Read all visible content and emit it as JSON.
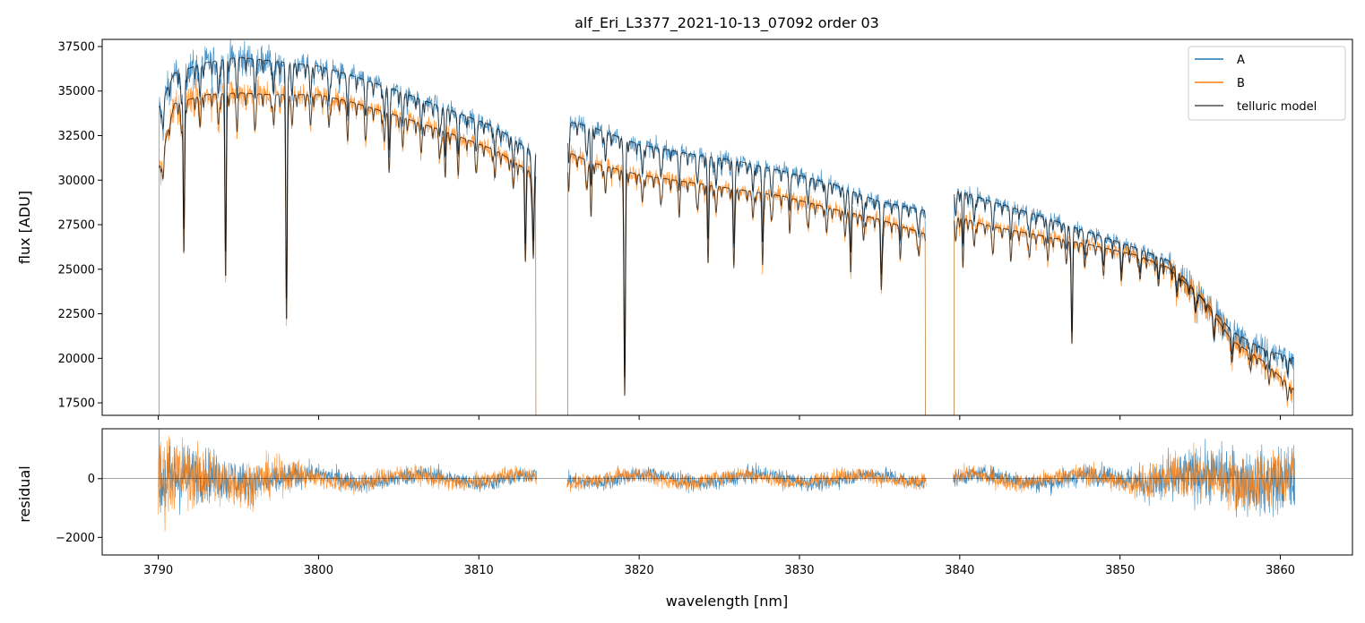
{
  "chart_data": [
    {
      "panel": "main",
      "type": "line",
      "title": "alf_Eri_L3377_2021-10-13_07092  order 03",
      "xlabel": "",
      "ylabel": "flux [ADU]",
      "xlim": [
        3786.5,
        3864.5
      ],
      "ylim": [
        16800,
        37900
      ],
      "yticks": [
        17500,
        20000,
        22500,
        25000,
        27500,
        30000,
        32500,
        35000,
        37500
      ],
      "ytick_labels": [
        "17500",
        "20000",
        "22500",
        "25000",
        "27500",
        "30000",
        "32500",
        "35000",
        "37500"
      ],
      "xticks": [
        3790,
        3800,
        3810,
        3820,
        3830,
        3840,
        3850,
        3860
      ],
      "legend_position": "top-right",
      "grid": false,
      "segments": [
        [
          3790.0,
          3813.6
        ],
        [
          3815.5,
          3837.9
        ],
        [
          3839.6,
          3860.9
        ]
      ],
      "series": [
        {
          "name": "A",
          "color": "#1f77b4",
          "x": [
            3790,
            3791,
            3793,
            3795,
            3797,
            3800,
            3802,
            3805,
            3808,
            3811,
            3813.5,
            3815.5,
            3817,
            3820,
            3823,
            3826,
            3829,
            3832,
            3835,
            3837.8,
            3839.6,
            3842,
            3845,
            3848,
            3851,
            3853,
            3855,
            3857,
            3859,
            3860.9
          ],
          "y": [
            34000,
            36000,
            36600,
            36900,
            36700,
            36400,
            35900,
            35000,
            34000,
            33000,
            31500,
            33300,
            33000,
            32000,
            31500,
            31100,
            30500,
            29800,
            28800,
            28300,
            29500,
            28800,
            28000,
            27100,
            26200,
            25500,
            23500,
            21500,
            20500,
            20000
          ]
        },
        {
          "name": "B",
          "color": "#ff7f0e",
          "x": [
            3790,
            3791,
            3793,
            3795,
            3797,
            3800,
            3802,
            3805,
            3808,
            3811,
            3813.5,
            3815.5,
            3817,
            3820,
            3823,
            3826,
            3829,
            3832,
            3835,
            3837.8,
            3839.6,
            3842,
            3845,
            3848,
            3851,
            3853,
            3855,
            3857,
            3859,
            3860.9
          ],
          "y": [
            30500,
            34300,
            34800,
            34900,
            34800,
            34800,
            34400,
            33600,
            32700,
            31700,
            30300,
            31600,
            31000,
            30300,
            29900,
            29500,
            29100,
            28400,
            27800,
            27000,
            28000,
            27400,
            26900,
            26400,
            25800,
            25100,
            23500,
            21000,
            19800,
            18200
          ]
        },
        {
          "name": "telluric model",
          "color": "#505050",
          "x": [
            3790,
            3791,
            3793,
            3795,
            3797,
            3800,
            3802,
            3805,
            3808,
            3811,
            3813.5,
            3815.5,
            3817,
            3820,
            3823,
            3826,
            3829,
            3832,
            3835,
            3837.8,
            3839.6,
            3842,
            3845,
            3848,
            3851,
            3853,
            3855,
            3857,
            3859,
            3860.9
          ],
          "y": [
            34000,
            36000,
            36600,
            36900,
            36700,
            36400,
            35900,
            35000,
            34000,
            33000,
            31500,
            33300,
            33000,
            32000,
            31500,
            31100,
            30500,
            29800,
            28800,
            28300,
            29500,
            28800,
            28000,
            27100,
            26200,
            25500,
            23500,
            21500,
            20500,
            20000
          ]
        }
      ],
      "absorption_lines": [
        {
          "x": 3791.6,
          "depth": 0.25
        },
        {
          "x": 3794.2,
          "depth": 0.3
        },
        {
          "x": 3798.0,
          "depth": 0.37
        },
        {
          "x": 3804.4,
          "depth": 0.1
        },
        {
          "x": 3807.9,
          "depth": 0.08
        },
        {
          "x": 3812.9,
          "depth": 0.17
        },
        {
          "x": 3813.4,
          "depth": 0.15
        },
        {
          "x": 3817.0,
          "depth": 0.1
        },
        {
          "x": 3819.1,
          "depth": 0.4
        },
        {
          "x": 3824.3,
          "depth": 0.15
        },
        {
          "x": 3825.9,
          "depth": 0.12
        },
        {
          "x": 3827.7,
          "depth": 0.14
        },
        {
          "x": 3833.2,
          "depth": 0.12
        },
        {
          "x": 3835.1,
          "depth": 0.11
        },
        {
          "x": 3840.2,
          "depth": 0.1
        },
        {
          "x": 3847.0,
          "depth": 0.22
        }
      ]
    },
    {
      "panel": "residual",
      "type": "line",
      "xlabel": "wavelength [nm]",
      "ylabel": "residual",
      "xlim": [
        3786.5,
        3864.5
      ],
      "ylim": [
        -2600,
        1700
      ],
      "yticks": [
        -2000,
        0
      ],
      "ytick_labels": [
        "−2000",
        "0"
      ],
      "xticks": [
        3790,
        3800,
        3810,
        3820,
        3830,
        3840,
        3850,
        3860
      ],
      "xtick_labels": [
        "3790",
        "3800",
        "3810",
        "3820",
        "3830",
        "3840",
        "3850",
        "3860"
      ],
      "zero_line": true,
      "series": [
        {
          "name": "A",
          "color": "#1f77b4",
          "noise_amplitude_x": [
            3790,
            3792,
            3797,
            3800,
            3813,
            3815.5,
            3838,
            3839.6,
            3850,
            3853,
            3860.9
          ],
          "noise_amplitude_y": [
            2000,
            1300,
            700,
            450,
            350,
            350,
            350,
            350,
            500,
            1100,
            1600
          ]
        },
        {
          "name": "B",
          "color": "#ff7f0e",
          "noise_amplitude_x": [
            3790,
            3792,
            3797,
            3800,
            3813,
            3815.5,
            3838,
            3839.6,
            3850,
            3853,
            3860.9
          ],
          "noise_amplitude_y": [
            2000,
            1400,
            900,
            450,
            350,
            350,
            350,
            350,
            500,
            1000,
            1400
          ]
        }
      ]
    }
  ]
}
